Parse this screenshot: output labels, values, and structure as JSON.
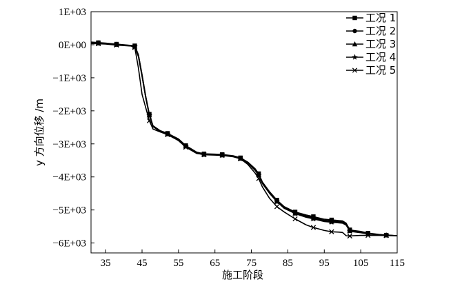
{
  "chart_data": {
    "type": "line",
    "title": "",
    "xlabel": "施工阶段",
    "ylabel": "y 方向位移 /m",
    "xlim": [
      31,
      115
    ],
    "ylim": [
      -6300,
      1000
    ],
    "x_ticks": [
      35,
      45,
      55,
      65,
      75,
      85,
      95,
      105,
      115
    ],
    "y_ticks": [
      1000,
      0,
      -1000,
      -2000,
      -3000,
      -4000,
      -5000,
      -6000
    ],
    "y_tick_labels": [
      "1E+03",
      "0E+00",
      "−1E+03",
      "−2E+03",
      "−3E+03",
      "−4E+03",
      "−5E+03",
      "−6E+03"
    ],
    "legend_position": "top-right",
    "series": [
      {
        "name": "工况 1",
        "marker": "square",
        "x": [
          31,
          35,
          38,
          42,
          43,
          44,
          45,
          46,
          47,
          48,
          50,
          52,
          55,
          57,
          60,
          62,
          65,
          67,
          70,
          72,
          74,
          76,
          77,
          78,
          80,
          82,
          84,
          87,
          90,
          92,
          95,
          97,
          100,
          101,
          102,
          103,
          105,
          107,
          110,
          112,
          115
        ],
        "y": [
          80,
          50,
          20,
          -20,
          -30,
          -300,
          -900,
          -1550,
          -2100,
          -2450,
          -2600,
          -2680,
          -2850,
          -3050,
          -3250,
          -3300,
          -3310,
          -3320,
          -3360,
          -3420,
          -3550,
          -3750,
          -3900,
          -4150,
          -4450,
          -4700,
          -4900,
          -5060,
          -5150,
          -5200,
          -5280,
          -5300,
          -5330,
          -5400,
          -5600,
          -5620,
          -5650,
          -5700,
          -5740,
          -5760,
          -5780
        ]
      },
      {
        "name": "工况 2",
        "marker": "circle",
        "x": [
          31,
          35,
          38,
          42,
          43,
          44,
          45,
          46,
          47,
          48,
          50,
          52,
          55,
          57,
          60,
          62,
          65,
          67,
          70,
          72,
          74,
          76,
          77,
          78,
          80,
          82,
          84,
          87,
          90,
          92,
          95,
          97,
          100,
          101,
          102,
          103,
          105,
          107,
          110,
          112,
          115
        ],
        "y": [
          70,
          40,
          10,
          -25,
          -40,
          -320,
          -920,
          -1570,
          -2110,
          -2460,
          -2610,
          -2690,
          -2860,
          -3060,
          -3260,
          -3310,
          -3320,
          -3330,
          -3370,
          -3430,
          -3560,
          -3770,
          -3920,
          -4170,
          -4470,
          -4720,
          -4920,
          -5080,
          -5180,
          -5230,
          -5310,
          -5330,
          -5360,
          -5430,
          -5620,
          -5640,
          -5670,
          -5710,
          -5745,
          -5760,
          -5780
        ]
      },
      {
        "name": "工况 3",
        "marker": "triangle",
        "x": [
          31,
          35,
          38,
          42,
          43,
          44,
          45,
          46,
          47,
          48,
          50,
          52,
          55,
          57,
          60,
          62,
          65,
          67,
          70,
          72,
          74,
          76,
          77,
          78,
          80,
          82,
          84,
          87,
          90,
          92,
          95,
          97,
          100,
          101,
          102,
          103,
          105,
          107,
          110,
          112,
          115
        ],
        "y": [
          60,
          35,
          5,
          -30,
          -50,
          -340,
          -940,
          -1590,
          -2130,
          -2470,
          -2620,
          -2700,
          -2870,
          -3070,
          -3270,
          -3320,
          -3330,
          -3340,
          -3380,
          -3440,
          -3570,
          -3790,
          -3940,
          -4190,
          -4490,
          -4740,
          -4940,
          -5100,
          -5200,
          -5250,
          -5330,
          -5350,
          -5380,
          -5450,
          -5630,
          -5650,
          -5680,
          -5720,
          -5750,
          -5765,
          -5780
        ]
      },
      {
        "name": "工况 4",
        "marker": "star",
        "x": [
          31,
          35,
          38,
          42,
          43,
          44,
          45,
          46,
          47,
          48,
          50,
          52,
          55,
          57,
          60,
          62,
          65,
          67,
          70,
          72,
          74,
          76,
          77,
          78,
          80,
          82,
          84,
          87,
          90,
          92,
          95,
          97,
          100,
          101,
          102,
          103,
          105,
          107,
          110,
          112,
          115
        ],
        "y": [
          55,
          30,
          0,
          -35,
          -60,
          -360,
          -960,
          -1600,
          -2140,
          -2480,
          -2630,
          -2710,
          -2880,
          -3080,
          -3280,
          -3330,
          -3340,
          -3350,
          -3390,
          -3450,
          -3580,
          -3800,
          -3950,
          -4200,
          -4500,
          -4750,
          -4950,
          -5110,
          -5220,
          -5270,
          -5350,
          -5370,
          -5400,
          -5460,
          -5640,
          -5660,
          -5690,
          -5725,
          -5755,
          -5770,
          -5780
        ]
      },
      {
        "name": "工况 5",
        "marker": "x",
        "x": [
          31,
          35,
          38,
          42,
          43,
          44,
          45,
          46,
          47,
          48,
          50,
          52,
          55,
          57,
          60,
          62,
          65,
          67,
          70,
          72,
          74,
          76,
          77,
          78,
          80,
          82,
          84,
          87,
          90,
          92,
          95,
          97,
          99,
          100,
          101,
          102,
          103,
          105,
          107,
          110,
          112,
          115
        ],
        "y": [
          40,
          20,
          -10,
          -40,
          -80,
          -700,
          -1500,
          -1900,
          -2300,
          -2550,
          -2640,
          -2720,
          -2900,
          -3100,
          -3290,
          -3320,
          -3330,
          -3340,
          -3380,
          -3450,
          -3620,
          -3880,
          -4050,
          -4300,
          -4650,
          -4900,
          -5060,
          -5270,
          -5450,
          -5530,
          -5620,
          -5660,
          -5670,
          -5680,
          -5780,
          -5790,
          -5780,
          -5770,
          -5770,
          -5770,
          -5775,
          -5780
        ]
      }
    ]
  }
}
